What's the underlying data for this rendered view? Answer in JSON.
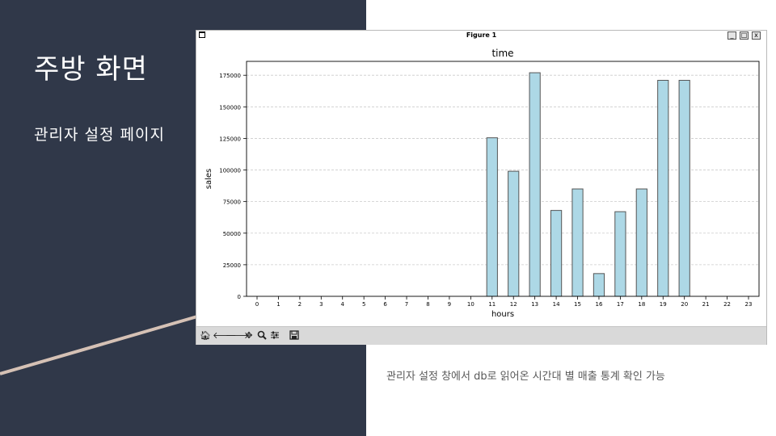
{
  "slide": {
    "title": "주방 화면",
    "subtitle": "관리자 설정 페이지",
    "caption": "관리자 설정 창에서 db로 읽어온 시간대 별 매출 통계 확인 가능"
  },
  "colors": {
    "panel": "#303849",
    "accent_line": "#d5c1b5",
    "bar_fill": "#add8e6",
    "bar_edge": "#555555"
  },
  "window": {
    "title": "Figure 1",
    "buttons": {
      "minimize": "_",
      "maximize": "□",
      "close": "x"
    },
    "toolbar_icons": [
      "home-icon",
      "back-arrow-icon",
      "forward-arrow-icon",
      "pan-icon",
      "zoom-icon",
      "configure-subplots-icon",
      "save-icon"
    ]
  },
  "chart_data": {
    "type": "bar",
    "title": "time",
    "xlabel": "hours",
    "ylabel": "sales",
    "categories": [
      "0",
      "1",
      "2",
      "3",
      "4",
      "5",
      "6",
      "7",
      "8",
      "9",
      "10",
      "11",
      "12",
      "13",
      "14",
      "15",
      "16",
      "17",
      "18",
      "19",
      "20",
      "21",
      "22",
      "23"
    ],
    "values": [
      0,
      0,
      0,
      0,
      0,
      0,
      0,
      0,
      0,
      0,
      0,
      125500,
      99000,
      177000,
      68000,
      85000,
      18000,
      67000,
      85000,
      171000,
      171000,
      0,
      0,
      0
    ],
    "ylim": [
      0,
      186000
    ],
    "yticks": [
      0,
      25000,
      50000,
      75000,
      100000,
      125000,
      150000,
      175000
    ],
    "grid": "horizontal dashed",
    "legend": "none"
  }
}
